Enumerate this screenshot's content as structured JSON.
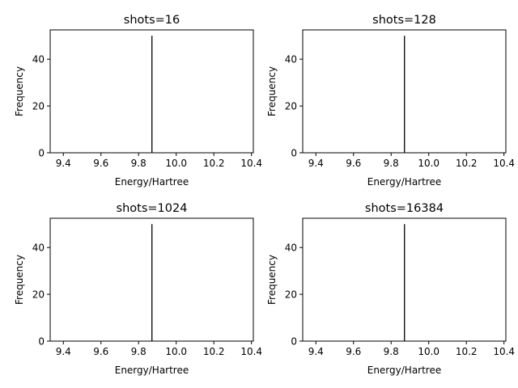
{
  "chart_data": [
    {
      "type": "bar",
      "title": "shots=16",
      "xlabel": "Energy/Hartree",
      "ylabel": "Frequency",
      "xlim": [
        9.33,
        10.41
      ],
      "ylim": [
        0,
        52.5
      ],
      "xticks": [
        "9.4",
        "9.6",
        "9.8",
        "10.0",
        "10.2",
        "10.4"
      ],
      "yticks": [
        "0",
        "20",
        "40"
      ],
      "bars": [
        {
          "x": 9.871,
          "value": 50
        }
      ],
      "grid": false,
      "legend": "none"
    },
    {
      "type": "bar",
      "title": "shots=128",
      "xlabel": "Energy/Hartree",
      "ylabel": "Frequency",
      "xlim": [
        9.33,
        10.41
      ],
      "ylim": [
        0,
        52.5
      ],
      "xticks": [
        "9.4",
        "9.6",
        "9.8",
        "10.0",
        "10.2",
        "10.4"
      ],
      "yticks": [
        "0",
        "20",
        "40"
      ],
      "bars": [
        {
          "x": 9.871,
          "value": 50
        }
      ],
      "grid": false,
      "legend": "none"
    },
    {
      "type": "bar",
      "title": "shots=1024",
      "xlabel": "Energy/Hartree",
      "ylabel": "Frequency",
      "xlim": [
        9.33,
        10.41
      ],
      "ylim": [
        0,
        52.5
      ],
      "xticks": [
        "9.4",
        "9.6",
        "9.8",
        "10.0",
        "10.2",
        "10.4"
      ],
      "yticks": [
        "0",
        "20",
        "40"
      ],
      "bars": [
        {
          "x": 9.871,
          "value": 50
        }
      ],
      "grid": false,
      "legend": "none"
    },
    {
      "type": "bar",
      "title": "shots=16384",
      "xlabel": "Energy/Hartree",
      "ylabel": "Frequency",
      "xlim": [
        9.33,
        10.41
      ],
      "ylim": [
        0,
        52.5
      ],
      "xticks": [
        "9.4",
        "9.6",
        "9.8",
        "10.0",
        "10.2",
        "10.4"
      ],
      "yticks": [
        "0",
        "20",
        "40"
      ],
      "bars": [
        {
          "x": 9.871,
          "value": 50
        }
      ],
      "grid": false,
      "legend": "none"
    }
  ]
}
